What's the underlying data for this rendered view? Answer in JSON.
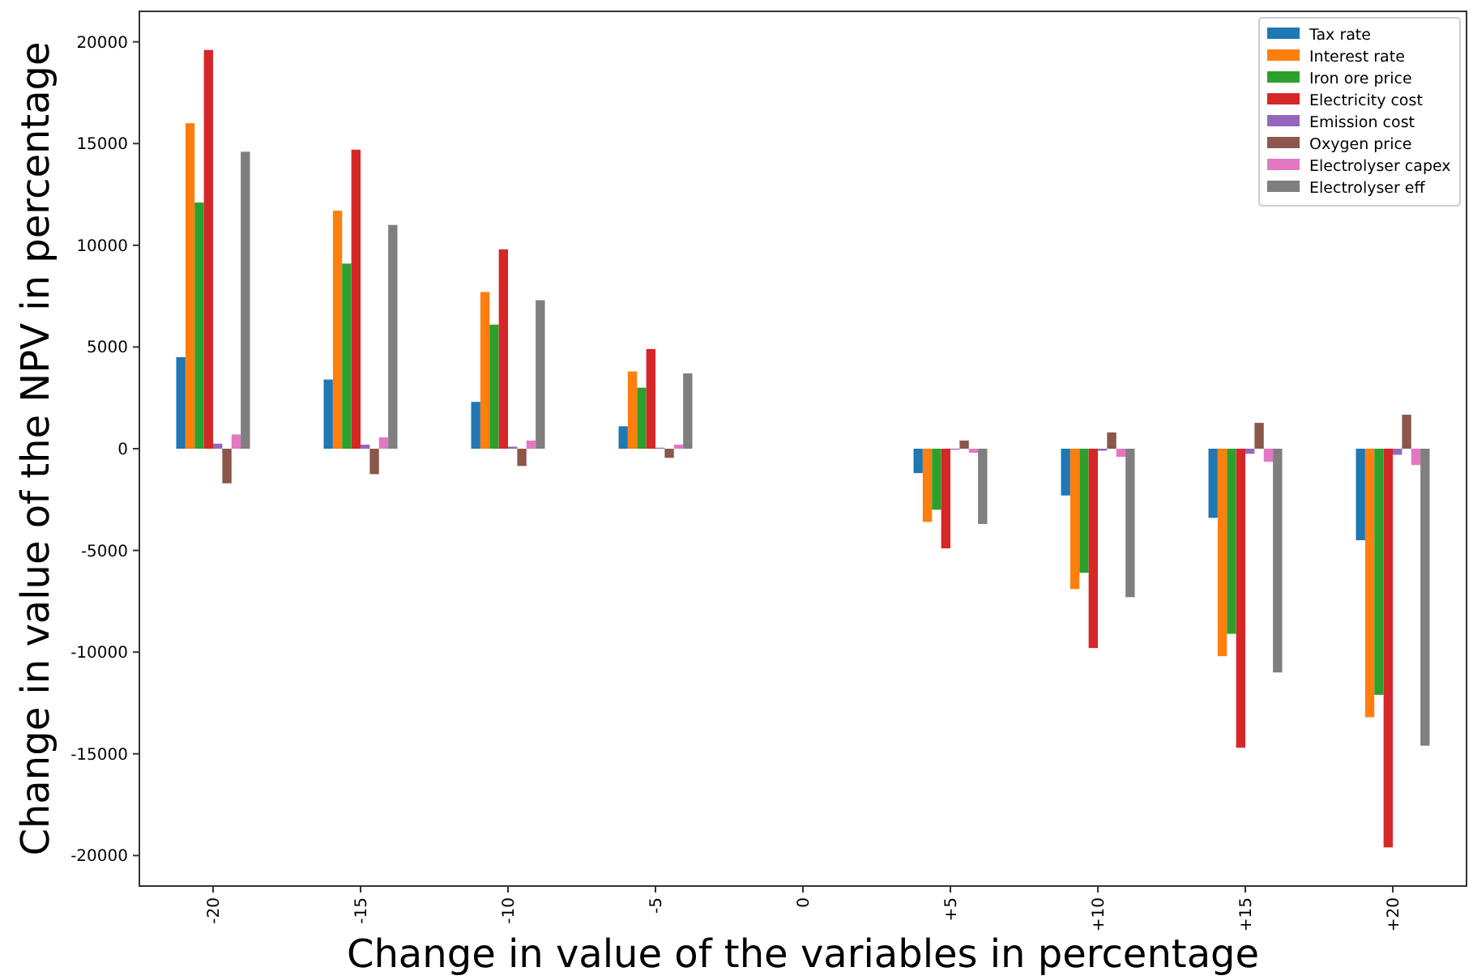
{
  "chart_data": {
    "type": "bar",
    "xlabel": "Change in value of the variables in percentage",
    "ylabel": "Change in value of the NPV in percentage",
    "categories": [
      "-20",
      "-15",
      "-10",
      "-5",
      "0",
      "+5",
      "+10",
      "+15",
      "+20"
    ],
    "series": [
      {
        "name": "Tax rate",
        "color": "#1f77b4",
        "values": [
          4500,
          3400,
          2300,
          1100,
          0,
          -1200,
          -2300,
          -3400,
          -4500
        ]
      },
      {
        "name": "Interest rate",
        "color": "#ff7f0e",
        "values": [
          16000,
          11700,
          7700,
          3800,
          0,
          -3600,
          -6900,
          -10200,
          -13200
        ]
      },
      {
        "name": "Iron ore price",
        "color": "#2ca02c",
        "values": [
          12100,
          9100,
          6100,
          3000,
          0,
          -3000,
          -6100,
          -9100,
          -12100
        ]
      },
      {
        "name": "Electricity cost",
        "color": "#d62728",
        "values": [
          19600,
          14700,
          9800,
          4900,
          0,
          -4900,
          -9800,
          -14700,
          -19600
        ]
      },
      {
        "name": "Emission cost",
        "color": "#9467bd",
        "values": [
          250,
          200,
          100,
          50,
          0,
          -50,
          -100,
          -250,
          -300
        ]
      },
      {
        "name": "Oxygen price",
        "color": "#8c564b",
        "values": [
          -1700,
          -1250,
          -850,
          -450,
          0,
          400,
          800,
          1270,
          1670
        ]
      },
      {
        "name": "Electrolyser capex",
        "color": "#e377c2",
        "values": [
          700,
          560,
          400,
          200,
          0,
          -200,
          -400,
          -640,
          -800
        ]
      },
      {
        "name": "Electrolyser eff",
        "color": "#7f7f7f",
        "values": [
          14600,
          11000,
          7300,
          3700,
          0,
          -3700,
          -7300,
          -11000,
          -14600
        ]
      }
    ],
    "ylim": [
      -21500,
      21500
    ],
    "yticks": [
      -20000,
      -15000,
      -10000,
      -5000,
      0,
      5000,
      10000,
      15000,
      20000
    ],
    "legend": "top right",
    "grid": false
  }
}
